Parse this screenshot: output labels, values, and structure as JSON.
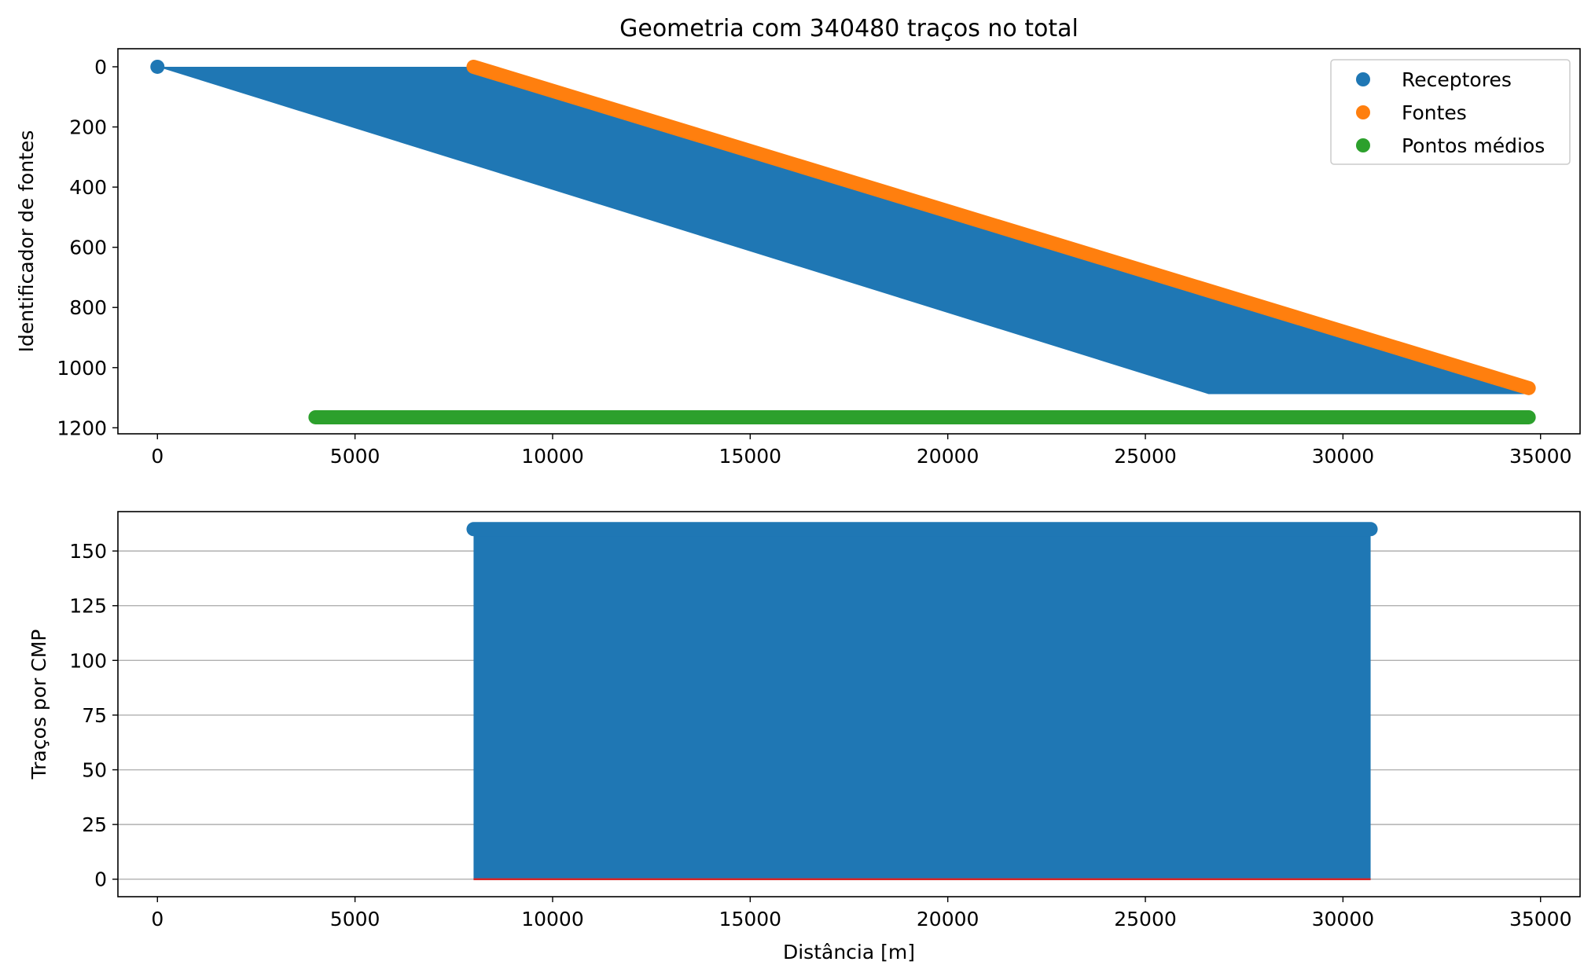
{
  "figure": {
    "title": "Geometria com 340480 traços no total"
  },
  "chart_data": [
    {
      "type": "scatter",
      "title": "Geometria com 340480 traços no total",
      "xlabel": "",
      "ylabel": "Identificador de fontes",
      "xlim": [
        -1000,
        36000
      ],
      "ylim": [
        1220,
        -60
      ],
      "y_inverted": true,
      "xticks": [
        0,
        5000,
        10000,
        15000,
        20000,
        25000,
        30000,
        35000
      ],
      "yticks": [
        0,
        200,
        400,
        600,
        800,
        1000,
        1200
      ],
      "grid": false,
      "legend": {
        "placement": "top-right",
        "entries": [
          "Receptores",
          "Fontes",
          "Pontos médios"
        ]
      },
      "series": [
        {
          "name": "Receptores",
          "color": "#1f77b4",
          "region_polygon": [
            [
              0,
              0
            ],
            [
              8000,
              0
            ],
            [
              34700,
              1068
            ],
            [
              34700,
              1088
            ],
            [
              26600,
              1088
            ],
            [
              0,
              0
            ]
          ]
        },
        {
          "name": "Fontes",
          "color": "#ff7f0e",
          "line": [
            [
              8000,
              0
            ],
            [
              34700,
              1068
            ]
          ]
        },
        {
          "name": "Pontos médios",
          "color": "#2ca02c",
          "line": [
            [
              4000,
              1165
            ],
            [
              34700,
              1165
            ]
          ]
        }
      ]
    },
    {
      "type": "bar",
      "title": "",
      "xlabel": "Distância [m]",
      "ylabel": "Traços por CMP",
      "xlim": [
        -1000,
        36000
      ],
      "ylim": [
        -8,
        168
      ],
      "xticks": [
        0,
        5000,
        10000,
        15000,
        20000,
        25000,
        30000,
        35000
      ],
      "yticks": [
        0,
        25,
        50,
        75,
        100,
        125,
        150
      ],
      "grid": true,
      "grid_axis": "y",
      "fill_color": "#1f77b4",
      "baseline_color": "#d62728",
      "x_range": [
        8000,
        30700
      ],
      "value": 160
    }
  ]
}
